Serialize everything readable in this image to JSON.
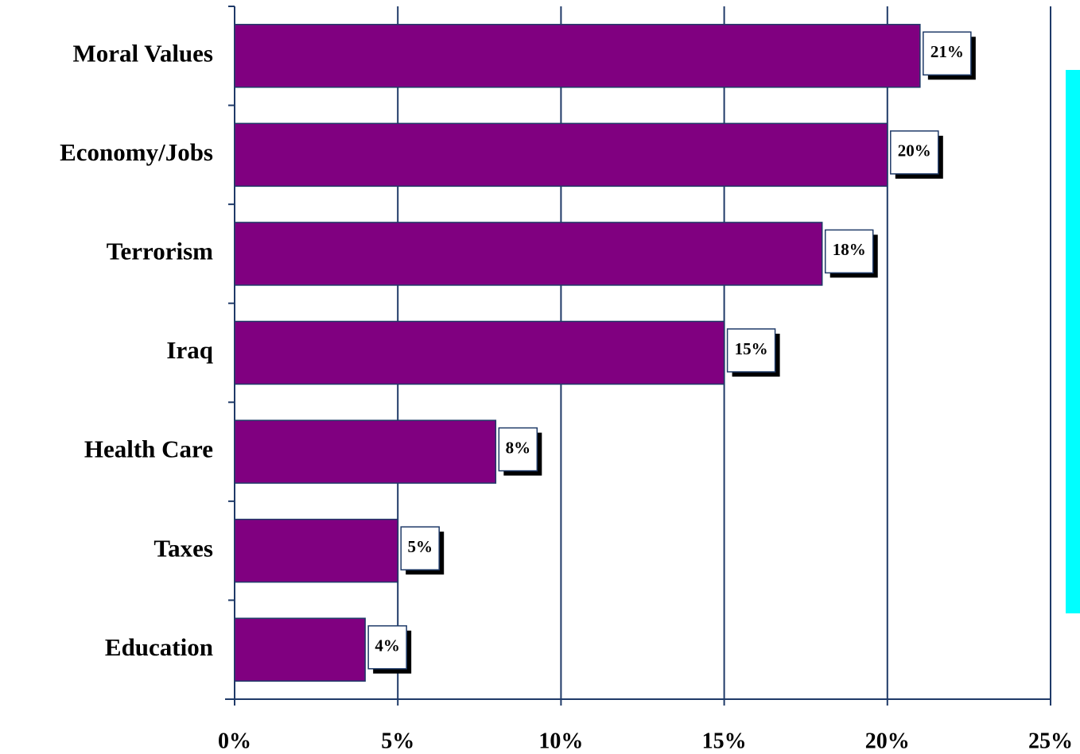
{
  "chart_data": {
    "type": "bar",
    "orientation": "horizontal",
    "categories": [
      "Moral Values",
      "Economy/Jobs",
      "Terrorism",
      "Iraq",
      "Health Care",
      "Taxes",
      "Education"
    ],
    "values": [
      21,
      20,
      18,
      15,
      8,
      5,
      4
    ],
    "value_labels": [
      "21%",
      "20%",
      "18%",
      "15%",
      "8%",
      "5%",
      "4%"
    ],
    "color": "#800080",
    "xlim": [
      0,
      25
    ],
    "xticks": [
      {
        "value": 0,
        "label": "0%"
      },
      {
        "value": 5,
        "label": "5%"
      },
      {
        "value": 10,
        "label": "10%"
      },
      {
        "value": 15,
        "label": "15%"
      },
      {
        "value": 20,
        "label": "20%"
      },
      {
        "value": 25,
        "label": "25%"
      }
    ],
    "grid": true
  }
}
